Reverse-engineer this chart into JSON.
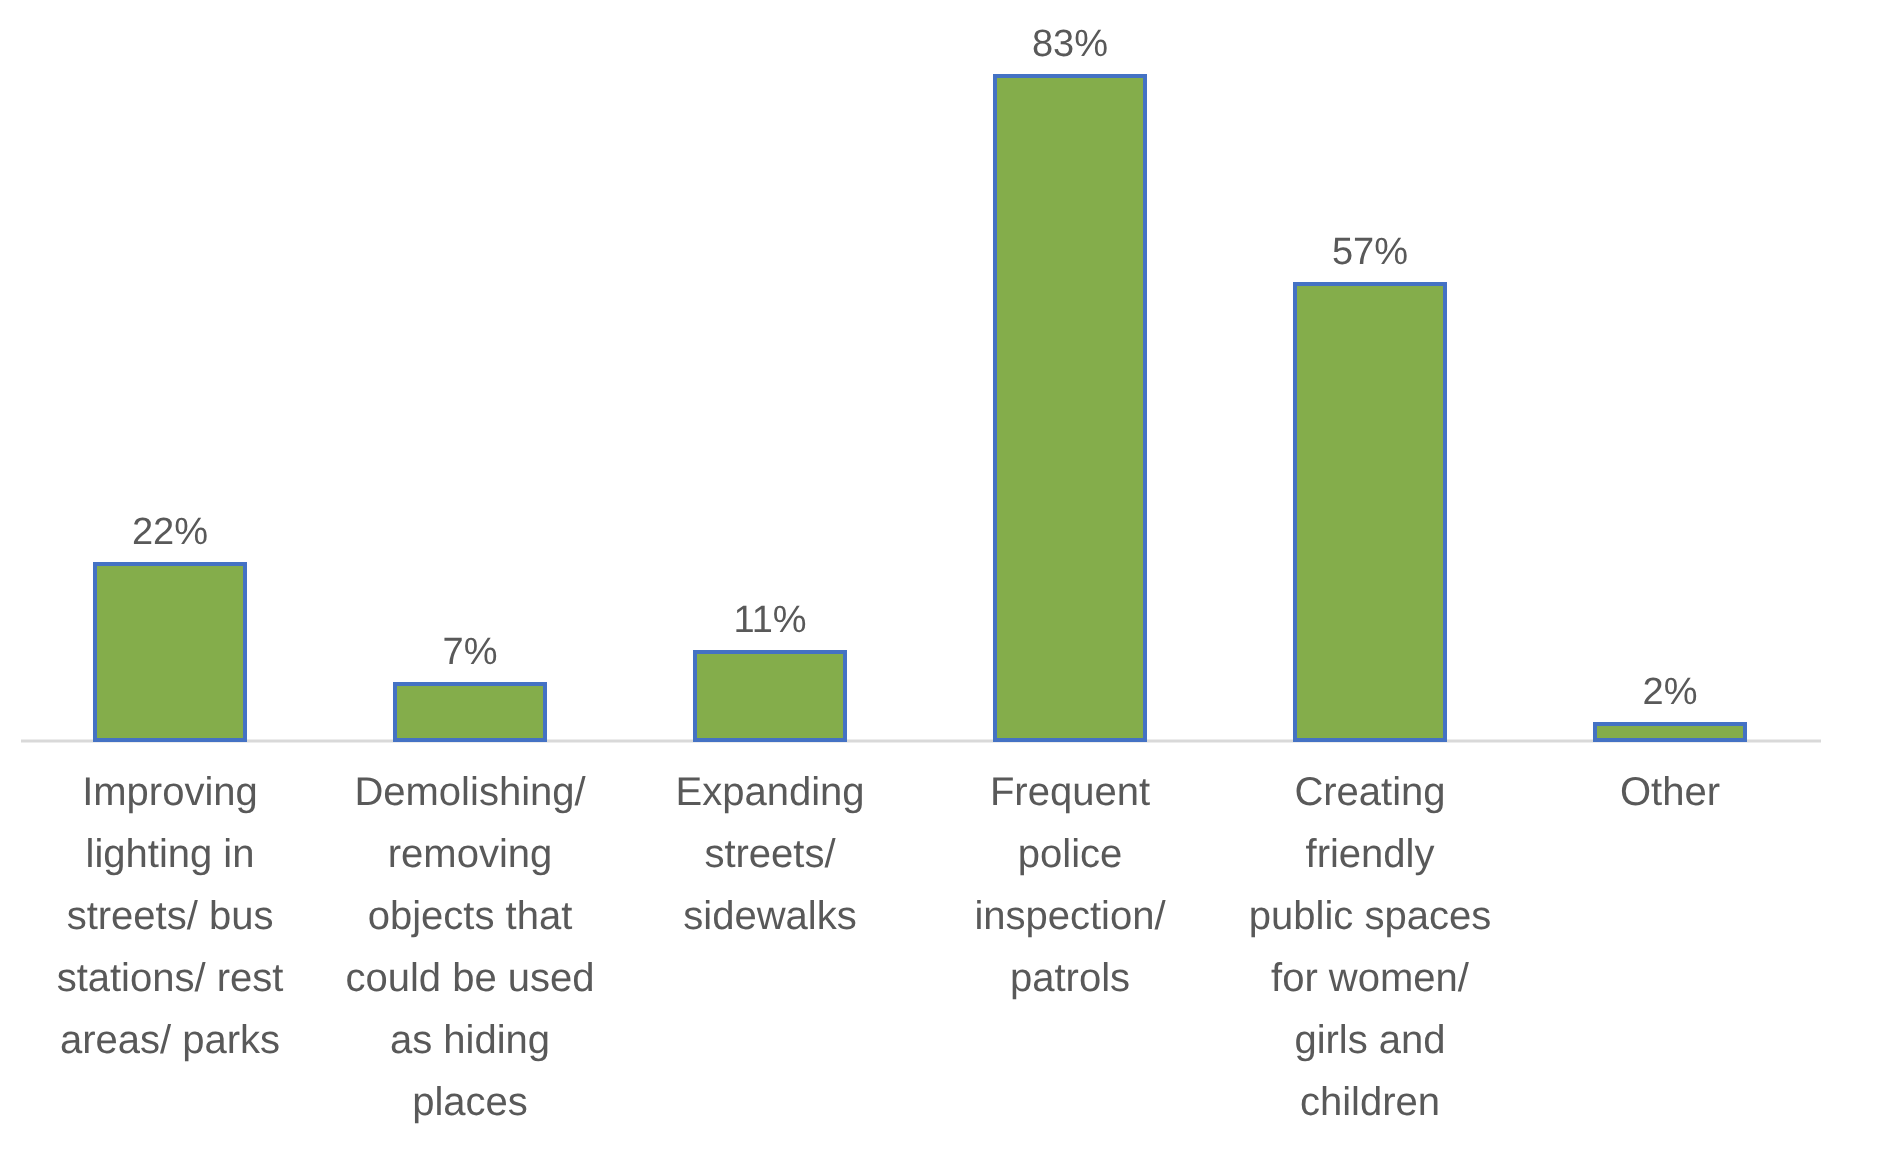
{
  "chart_data": {
    "type": "bar",
    "categories": [
      "Improving lighting in streets/ bus stations/ rest areas/ parks",
      "Demolishing/ removing objects that could be used as hiding places",
      "Expanding streets/ sidewalks",
      "Frequent police inspection/ patrols",
      "Creating friendly public spaces for women/ girls and children",
      "Other"
    ],
    "values": [
      22,
      7,
      11,
      83,
      57,
      2
    ],
    "color": "#84ad4b",
    "value_labels": [
      "22%",
      "7%",
      "11%",
      "83%",
      "57%",
      "2%"
    ]
  }
}
